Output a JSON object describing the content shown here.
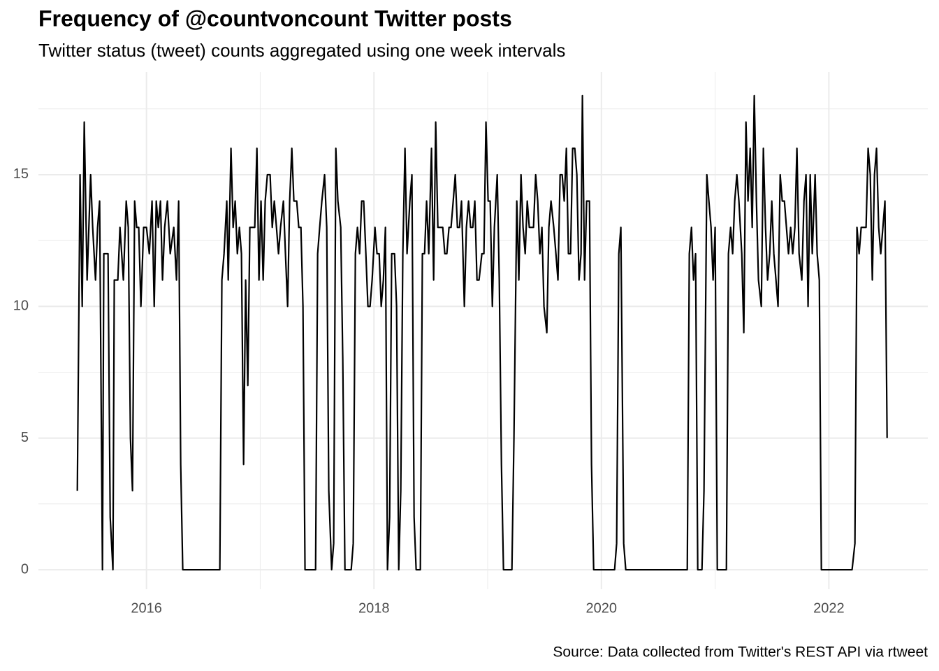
{
  "chart_data": {
    "type": "line",
    "title": "Frequency of @countvoncount Twitter posts",
    "subtitle": "Twitter status (tweet) counts aggregated using one week intervals",
    "caption": "Source: Data collected from Twitter's REST API via rtweet",
    "color": "#000000",
    "grid": true,
    "xlim": [
      2015.05,
      2022.87
    ],
    "xticks": [
      2016,
      2018,
      2020,
      2022
    ],
    "ylim": [
      -0.74,
      18.9
    ],
    "yticks": [
      0,
      5,
      10,
      15
    ],
    "x": [
      2015.392,
      2015.416,
      2015.435,
      2015.453,
      2015.478,
      2015.509,
      2015.527,
      2015.552,
      2015.57,
      2015.588,
      2015.613,
      2015.625,
      2015.662,
      2015.681,
      2015.705,
      2015.717,
      2015.748,
      2015.767,
      2015.797,
      2015.822,
      2015.84,
      2015.859,
      2015.877,
      2015.896,
      2015.914,
      2015.932,
      2015.951,
      2015.975,
      2016.0,
      2016.025,
      2016.049,
      2016.068,
      2016.086,
      2016.104,
      2016.123,
      2016.141,
      2016.16,
      2016.184,
      2016.209,
      2016.24,
      2016.264,
      2016.283,
      2016.301,
      2016.319,
      2016.645,
      2016.663,
      2016.682,
      2016.706,
      2016.719,
      2016.743,
      2016.762,
      2016.78,
      2016.799,
      2016.817,
      2016.835,
      2016.854,
      2016.872,
      2016.891,
      2016.909,
      2016.934,
      2016.952,
      2016.971,
      2016.989,
      2017.007,
      2017.026,
      2017.044,
      2017.063,
      2017.087,
      2017.106,
      2017.124,
      2017.143,
      2017.161,
      2017.179,
      2017.204,
      2017.222,
      2017.241,
      2017.259,
      2017.278,
      2017.296,
      2017.321,
      2017.339,
      2017.358,
      2017.376,
      2017.394,
      2017.487,
      2017.505,
      2017.523,
      2017.542,
      2017.566,
      2017.585,
      2017.603,
      2017.628,
      2017.646,
      2017.665,
      2017.683,
      2017.708,
      2017.726,
      2017.745,
      2017.8,
      2017.818,
      2017.837,
      2017.855,
      2017.874,
      2017.892,
      2017.91,
      2017.929,
      2017.947,
      2017.966,
      2017.984,
      2018.009,
      2018.027,
      2018.046,
      2018.064,
      2018.083,
      2018.101,
      2018.119,
      2018.138,
      2018.156,
      2018.181,
      2018.199,
      2018.218,
      2018.236,
      2018.254,
      2018.273,
      2018.291,
      2018.316,
      2018.334,
      2018.353,
      2018.371,
      2018.408,
      2018.426,
      2018.445,
      2018.463,
      2018.482,
      2018.506,
      2018.525,
      2018.543,
      2018.562,
      2018.58,
      2018.605,
      2018.623,
      2018.641,
      2018.66,
      2018.678,
      2018.697,
      2018.715,
      2018.734,
      2018.752,
      2018.77,
      2018.795,
      2018.813,
      2018.832,
      2018.85,
      2018.869,
      2018.887,
      2018.906,
      2018.924,
      2018.949,
      2018.967,
      2018.985,
      2019.004,
      2019.022,
      2019.041,
      2019.059,
      2019.084,
      2019.102,
      2019.121,
      2019.139,
      2019.213,
      2019.231,
      2019.256,
      2019.274,
      2019.293,
      2019.311,
      2019.33,
      2019.348,
      2019.366,
      2019.385,
      2019.403,
      2019.422,
      2019.44,
      2019.459,
      2019.477,
      2019.495,
      2019.52,
      2019.538,
      2019.557,
      2019.581,
      2019.6,
      2019.618,
      2019.637,
      2019.655,
      2019.673,
      2019.692,
      2019.71,
      2019.729,
      2019.747,
      2019.766,
      2019.784,
      2019.803,
      2019.821,
      2019.833,
      2019.852,
      2019.87,
      2019.895,
      2019.913,
      2019.932,
      2020.116,
      2020.134,
      2020.153,
      2020.171,
      2020.196,
      2020.214,
      2020.755,
      2020.773,
      2020.792,
      2020.81,
      2020.828,
      2020.847,
      2020.884,
      2020.902,
      2020.927,
      2020.945,
      2020.964,
      2020.982,
      2021.0,
      2021.019,
      2021.099,
      2021.117,
      2021.136,
      2021.154,
      2021.172,
      2021.191,
      2021.209,
      2021.234,
      2021.252,
      2021.271,
      2021.289,
      2021.308,
      2021.326,
      2021.344,
      2021.363,
      2021.381,
      2021.406,
      2021.424,
      2021.443,
      2021.461,
      2021.48,
      2021.498,
      2021.516,
      2021.535,
      2021.553,
      2021.572,
      2021.59,
      2021.609,
      2021.627,
      2021.645,
      2021.664,
      2021.682,
      2021.701,
      2021.719,
      2021.738,
      2021.762,
      2021.781,
      2021.799,
      2021.817,
      2021.836,
      2021.854,
      2021.879,
      2021.897,
      2021.916,
      2021.934,
      2022.204,
      2022.229,
      2022.247,
      2022.266,
      2022.284,
      2022.309,
      2022.327,
      2022.345,
      2022.364,
      2022.382,
      2022.401,
      2022.419,
      2022.438,
      2022.456,
      2022.475,
      2022.493,
      2022.512
    ],
    "values": [
      3,
      15,
      10,
      17,
      11,
      15,
      13,
      11,
      13,
      14,
      0,
      12,
      12,
      2,
      0,
      11,
      11,
      13,
      11,
      14,
      13,
      5,
      3,
      14,
      13,
      13,
      10,
      13,
      13,
      12,
      14,
      10,
      14,
      13,
      14,
      11,
      13,
      14,
      12,
      13,
      11,
      14,
      4,
      0,
      0,
      11,
      12,
      14,
      11,
      16,
      13,
      14,
      12,
      13,
      12,
      4,
      11,
      7,
      13,
      13,
      13,
      16,
      11,
      14,
      11,
      14,
      15,
      15,
      13,
      14,
      13,
      12,
      13,
      14,
      12,
      10,
      14,
      16,
      14,
      14,
      13,
      13,
      10,
      0,
      0,
      12,
      13,
      14,
      15,
      13,
      3,
      0,
      1,
      16,
      14,
      13,
      8,
      0,
      0,
      1,
      12,
      13,
      12,
      14,
      14,
      12,
      10,
      10,
      11,
      13,
      12,
      12,
      10,
      11,
      13,
      0,
      2,
      12,
      12,
      10,
      0,
      3,
      12,
      16,
      12,
      14,
      15,
      2,
      0,
      0,
      12,
      12,
      14,
      12,
      16,
      11,
      17,
      13,
      13,
      13,
      12,
      12,
      13,
      13,
      14,
      15,
      13,
      13,
      14,
      10,
      13,
      14,
      13,
      13,
      14,
      11,
      11,
      12,
      12,
      17,
      14,
      14,
      10,
      13,
      15,
      11,
      4,
      0,
      0,
      5,
      14,
      11,
      15,
      13,
      12,
      14,
      13,
      13,
      13,
      15,
      14,
      12,
      13,
      10,
      9,
      13,
      14,
      13,
      12,
      11,
      15,
      15,
      14,
      16,
      12,
      12,
      16,
      16,
      15,
      11,
      12,
      18,
      11,
      14,
      14,
      4,
      0,
      0,
      1,
      12,
      13,
      1,
      0,
      0,
      12,
      13,
      11,
      12,
      0,
      0,
      3,
      15,
      14,
      13,
      11,
      13,
      0,
      0,
      12,
      13,
      12,
      14,
      15,
      14,
      12,
      9,
      17,
      14,
      16,
      13,
      18,
      14,
      11,
      10,
      16,
      13,
      11,
      12,
      14,
      12,
      11,
      10,
      15,
      14,
      14,
      13,
      12,
      13,
      12,
      13,
      16,
      12,
      11,
      14,
      15,
      10,
      15,
      12,
      15,
      12,
      11,
      0,
      0,
      1,
      13,
      12,
      13,
      13,
      13,
      16,
      15,
      11,
      15,
      16,
      13,
      12,
      13,
      14,
      5
    ]
  }
}
